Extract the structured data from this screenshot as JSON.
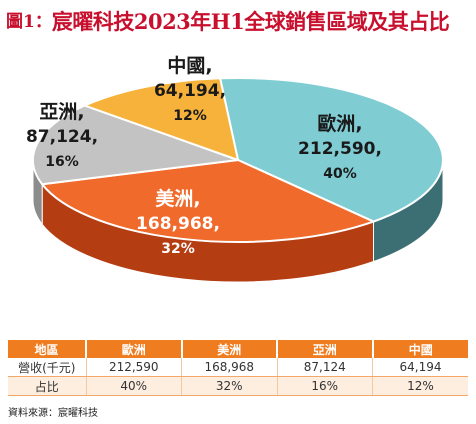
{
  "title": {
    "figure_no": "圖1：",
    "text": "宸曜科技2023年H1全球銷售區域及其占比"
  },
  "chart_data": {
    "type": "pie",
    "title": "宸曜科技2023年H1全球銷售區域及其占比",
    "unit": "千元",
    "slices": [
      {
        "name": "歐洲",
        "value": 212590,
        "value_label": "212,590,",
        "percent": 40,
        "percent_label": "40%",
        "color": "#7fcdd3",
        "side_color": "#3c6f74"
      },
      {
        "name": "美洲",
        "value": 168968,
        "value_label": "168,968,",
        "percent": 32,
        "percent_label": "32%",
        "color": "#f06a2b",
        "side_color": "#b53d12"
      },
      {
        "name": "亞洲",
        "value": 87124,
        "value_label": "87,124,",
        "percent": 16,
        "percent_label": "16%",
        "color": "#c3c3c3",
        "side_color": "#8c8c8c"
      },
      {
        "name": "中國",
        "value": 64194,
        "value_label": "64,194,",
        "percent": 12,
        "percent_label": "12%",
        "color": "#f6b23a",
        "side_color": "#c9861f"
      }
    ]
  },
  "table": {
    "header": [
      "地區",
      "歐洲",
      "美洲",
      "亞洲",
      "中國"
    ],
    "rows": [
      [
        "營收(千元)",
        "212,590",
        "168,968",
        "87,124",
        "64,194"
      ],
      [
        "占比",
        "40%",
        "32%",
        "16%",
        "12%"
      ]
    ]
  },
  "source": "資料來源：宸曜科技"
}
